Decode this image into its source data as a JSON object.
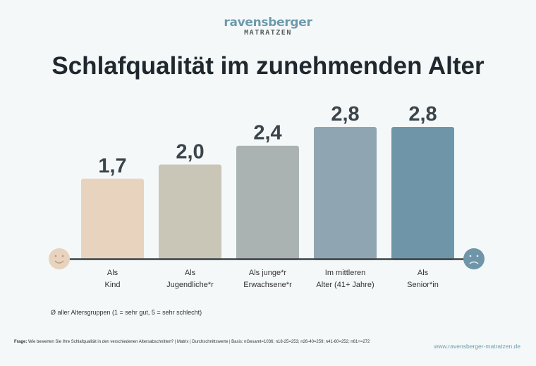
{
  "logo": {
    "line1": "ravensberger",
    "line2": "MATRATZEN"
  },
  "chart_data": {
    "type": "bar",
    "title": "Schlafqualität im zunehmenden Alter",
    "categories": [
      [
        "Als",
        "Kind"
      ],
      [
        "Als",
        "Jugendliche*r"
      ],
      [
        "Als junge*r",
        "Erwachsene*r"
      ],
      [
        "Im mittleren",
        "Alter (41+ Jahre)"
      ],
      [
        "Als",
        "Senior*in"
      ]
    ],
    "values": [
      1.7,
      2.0,
      2.4,
      2.8,
      2.8
    ],
    "value_labels": [
      "1,7",
      "2,0",
      "2,4",
      "2,8",
      "2,8"
    ],
    "colors": [
      "#e8d3bf",
      "#c9c6b8",
      "#aab3b2",
      "#8fa6b2",
      "#6f96a8"
    ],
    "ylim": [
      0,
      2.8
    ],
    "grid": false,
    "axis_icons": {
      "left": "happy-face-icon",
      "right": "worried-face-icon",
      "left_color": "#e8d3bf",
      "right_color": "#6f96a8"
    },
    "legend_note": "Ø aller Altersgruppen (1 = sehr gut, 5 = sehr schlecht)"
  },
  "footnote": {
    "label": "Frage:",
    "text": "Wie bewerten Sie Ihre Schlafqualität in den verschiedenen Altersabschnitten? | Matrix | Durchschnittswerte | Basis: nGesamt=1036; n18-25=253; n26-40=259; n41-60=252; n61+=272"
  },
  "url": "www.ravensberger-matratzen.de"
}
